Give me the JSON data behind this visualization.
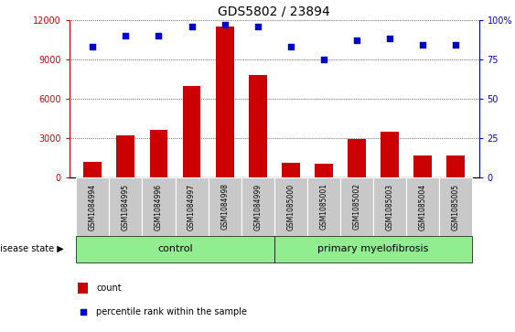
{
  "title": "GDS5802 / 23894",
  "samples": [
    "GSM1084994",
    "GSM1084995",
    "GSM1084996",
    "GSM1084997",
    "GSM1084998",
    "GSM1084999",
    "GSM1085000",
    "GSM1085001",
    "GSM1085002",
    "GSM1085003",
    "GSM1085004",
    "GSM1085005"
  ],
  "counts": [
    1200,
    3200,
    3600,
    7000,
    11500,
    7800,
    1100,
    1050,
    2950,
    3500,
    1700,
    1700
  ],
  "percentiles": [
    83,
    90,
    90,
    96,
    97,
    96,
    83,
    75,
    87,
    88,
    84,
    84
  ],
  "bar_color": "#cc0000",
  "dot_color": "#0000cc",
  "control_count": 6,
  "disease_count": 6,
  "control_label": "control",
  "disease_label": "primary myelofibrosis",
  "disease_state_label": "disease state",
  "group_bg_color": "#90ee90",
  "tick_bg_color": "#c8c8c8",
  "ylim_left": [
    0,
    12000
  ],
  "ylim_right": [
    0,
    100
  ],
  "yticks_left": [
    0,
    3000,
    6000,
    9000,
    12000
  ],
  "yticks_right": [
    0,
    25,
    50,
    75,
    100
  ],
  "legend_count_label": "count",
  "legend_percentile_label": "percentile rank within the sample",
  "grid_color": "#000000",
  "left_tick_color": "#cc0000",
  "right_tick_color": "#0000cc",
  "title_fontsize": 10,
  "tick_label_fontsize": 7,
  "sample_label_fontsize": 5.5,
  "group_label_fontsize": 8,
  "legend_fontsize": 7,
  "ds_fontsize": 7
}
